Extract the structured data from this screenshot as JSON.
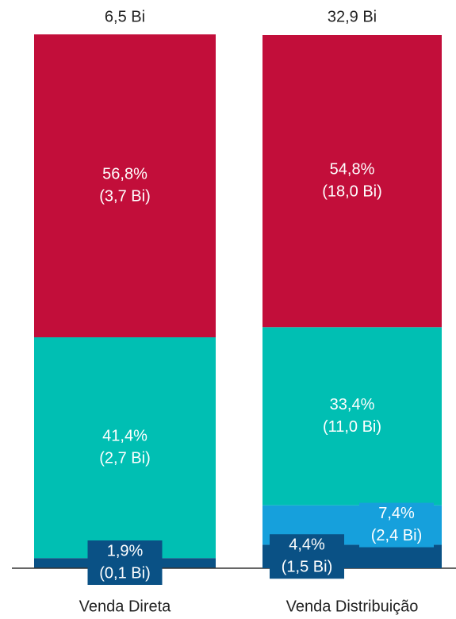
{
  "chart_data": {
    "type": "stacked_bar",
    "categories": [
      "Venda Direta",
      "Venda Distribuição"
    ],
    "total_labels": [
      "6,5 Bi",
      "32,9 Bi"
    ],
    "ylim": [
      0,
      100
    ],
    "series": [
      {
        "color": "#0a5185",
        "values": [
          1.9,
          4.4
        ],
        "value_labels": [
          "1,9%",
          "4,4%"
        ],
        "amount_labels": [
          "(0,1 Bi)",
          "(1,5 Bi)"
        ]
      },
      {
        "color": "#16a0dc",
        "values": [
          null,
          7.4
        ],
        "value_labels": [
          null,
          "7,4%"
        ],
        "amount_labels": [
          null,
          "(2,4 Bi)"
        ]
      },
      {
        "color": "#00bfb3",
        "values": [
          41.4,
          33.4
        ],
        "value_labels": [
          "41,4%",
          "33,4%"
        ],
        "amount_labels": [
          "(2,7 Bi)",
          "(11,0 Bi)"
        ]
      },
      {
        "color": "#c20e3a",
        "values": [
          56.8,
          54.8
        ],
        "value_labels": [
          "56,8%",
          "54,8%"
        ],
        "amount_labels": [
          "(3,7 Bi)",
          "(18,0 Bi)"
        ]
      }
    ]
  }
}
